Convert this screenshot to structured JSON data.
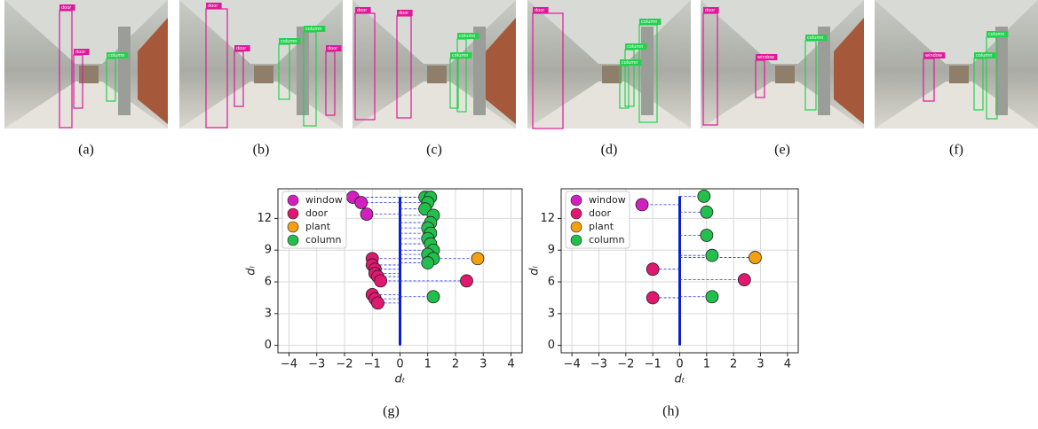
{
  "photos": [
    {
      "caption": "(a)",
      "labels": [
        "door",
        "door",
        "column"
      ]
    },
    {
      "caption": "(b)",
      "labels": [
        "door",
        "door",
        "column",
        "column",
        "door"
      ]
    },
    {
      "caption": "(c)",
      "labels": [
        "door",
        "door",
        "column",
        "column"
      ]
    },
    {
      "caption": "(d)",
      "labels": [
        "door",
        "column",
        "column",
        "column"
      ]
    },
    {
      "caption": "(e)",
      "labels": [
        "door",
        "window",
        "column"
      ]
    },
    {
      "caption": "(f)",
      "labels": [
        "window",
        "column",
        "column"
      ]
    }
  ],
  "chart_data": [
    {
      "type": "scatter",
      "caption": "(g)",
      "x_label": "dₜ",
      "y_label": "dₗ",
      "xlim": [
        -4.4,
        4.4
      ],
      "ylim": [
        -0.7,
        14.8
      ],
      "xticks": [
        {
          "value": -4,
          "label": "−4"
        },
        {
          "value": -3,
          "label": "−3"
        },
        {
          "value": -2,
          "label": "−2"
        },
        {
          "value": -1,
          "label": "−1"
        },
        0,
        1,
        2,
        3,
        4
      ],
      "yticks": [
        0,
        3,
        6,
        9,
        12
      ],
      "grid": true,
      "legend": "upper left",
      "series": [
        {
          "name": "window",
          "color": "#d41fc0",
          "x": [
            -1.7,
            -1.4,
            -1.2
          ],
          "y": [
            14.0,
            13.5,
            12.4
          ]
        },
        {
          "name": "door",
          "color": "#e0186f",
          "x": [
            -1.0,
            -1.0,
            -0.9,
            -0.9,
            -0.8,
            -0.7,
            -1.0,
            -0.9,
            -0.8,
            2.4
          ],
          "y": [
            8.2,
            7.6,
            7.2,
            6.8,
            6.5,
            6.1,
            4.8,
            4.4,
            4.0,
            6.1
          ]
        },
        {
          "name": "plant",
          "color": "#f5a00f",
          "x": [
            2.8
          ],
          "y": [
            8.2
          ]
        },
        {
          "name": "column",
          "color": "#22bf4c",
          "x": [
            0.9,
            1.1,
            1.0,
            0.9,
            1.2,
            1.1,
            1.0,
            1.1,
            1.0,
            1.1,
            1.2,
            1.0,
            1.2,
            1.0,
            1.2
          ],
          "y": [
            14.0,
            14.0,
            13.5,
            12.9,
            12.3,
            11.6,
            11.1,
            10.6,
            10.1,
            9.6,
            9.0,
            8.6,
            8.2,
            7.8,
            4.6
          ]
        }
      ]
    },
    {
      "type": "scatter",
      "caption": "(h)",
      "x_label": "dₜ",
      "y_label": "dₗ",
      "xlim": [
        -4.4,
        4.4
      ],
      "ylim": [
        -0.7,
        14.8
      ],
      "xticks": [
        {
          "value": -4,
          "label": "−4"
        },
        {
          "value": -3,
          "label": "−3"
        },
        {
          "value": -2,
          "label": "−2"
        },
        {
          "value": -1,
          "label": "−1"
        },
        0,
        1,
        2,
        3,
        4
      ],
      "yticks": [
        0,
        3,
        6,
        9,
        12
      ],
      "grid": true,
      "legend": "upper left",
      "series": [
        {
          "name": "window",
          "color": "#d41fc0",
          "x": [
            -1.4
          ],
          "y": [
            13.3
          ]
        },
        {
          "name": "door",
          "color": "#e0186f",
          "x": [
            -1.0,
            -1.0,
            2.4
          ],
          "y": [
            7.2,
            4.5,
            6.2
          ]
        },
        {
          "name": "plant",
          "color": "#f5a00f",
          "x": [
            2.8
          ],
          "y": [
            8.3
          ]
        },
        {
          "name": "column",
          "color": "#22bf4c",
          "x": [
            0.9,
            1.0,
            1.0,
            1.2,
            1.2
          ],
          "y": [
            14.1,
            12.6,
            10.4,
            8.5,
            4.6
          ]
        }
      ]
    }
  ]
}
